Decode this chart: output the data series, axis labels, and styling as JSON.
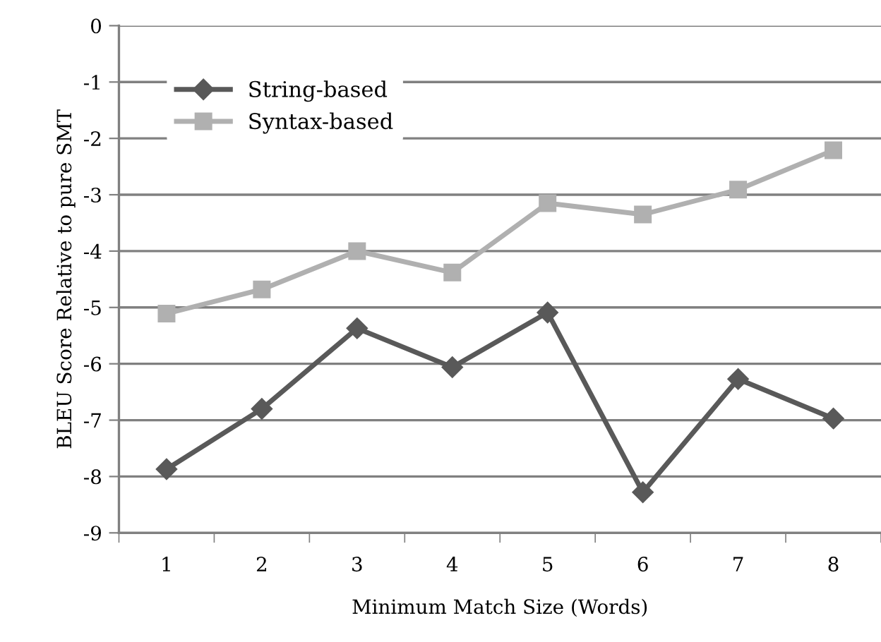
{
  "chart_data": {
    "type": "line",
    "xlabel": "Minimum Match Size (Words)",
    "ylabel": "BLEU Score Relative to pure SMT",
    "categories": [
      "1",
      "2",
      "3",
      "4",
      "5",
      "6",
      "7",
      "8"
    ],
    "series": [
      {
        "name": "String-based",
        "color": "#595959",
        "marker": "diamond",
        "values": [
          -7.87,
          -6.8,
          -5.37,
          -6.06,
          -5.09,
          -8.28,
          -6.27,
          -6.97
        ]
      },
      {
        "name": "Syntax-based",
        "color": "#b0b0b0",
        "marker": "square",
        "values": [
          -5.11,
          -4.68,
          -4.0,
          -4.38,
          -3.15,
          -3.35,
          -2.91,
          -2.21
        ]
      }
    ],
    "ylim": [
      -9,
      0
    ],
    "yticks": [
      -9,
      -8,
      -7,
      -6,
      -5,
      -4,
      -3,
      -2,
      -1,
      0
    ],
    "grid": "y",
    "legend": "top left",
    "line_style": "solid"
  }
}
